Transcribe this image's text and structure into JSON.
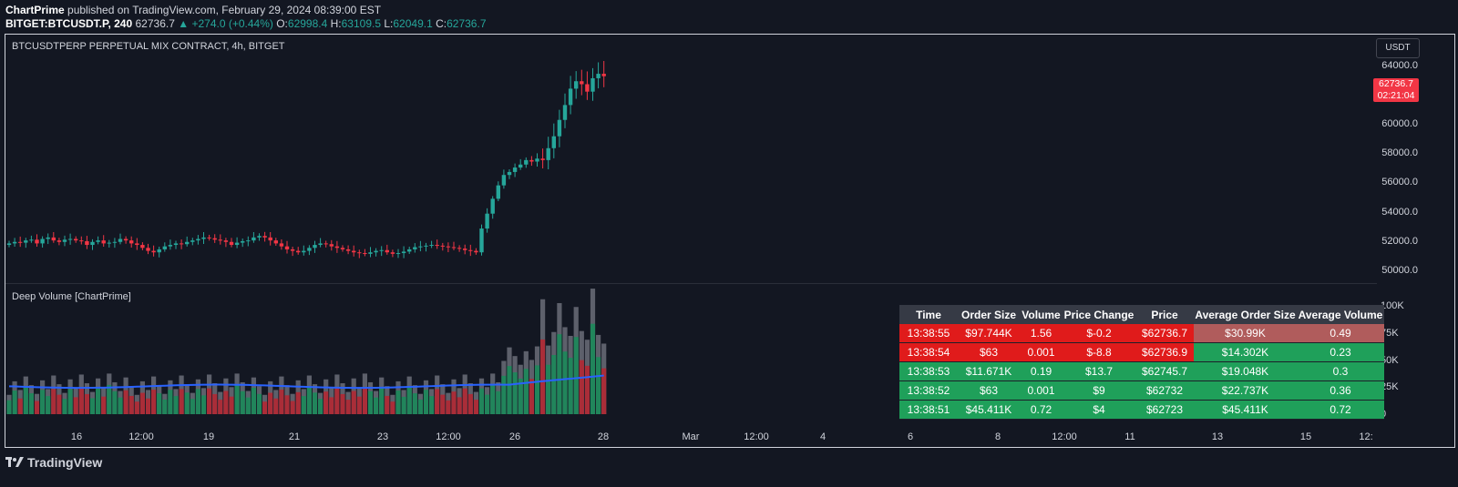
{
  "header": {
    "author": "ChartPrime",
    "published": "published on TradingView.com, February 29, 2024 08:39:00 EST",
    "symbol": "BITGET:BTCUSDT.P, 240",
    "last": "62736.7",
    "change": "+274.0 (+0.44%)",
    "o_label": "O:",
    "o_val": "62998.4",
    "h_label": "H:",
    "h_val": "63109.5",
    "l_label": "L:",
    "l_val": "62049.1",
    "c_label": "C:",
    "c_val": "62736.7"
  },
  "pane": {
    "title": "BTCUSDTPERP PERPETUAL MIX CONTRACT, 4h, BITGET",
    "currency": "USDT",
    "price_tag": "62736.7",
    "countdown": "02:21:04"
  },
  "price_scale": [
    "64000.0",
    "62000.0",
    "60000.0",
    "58000.0",
    "56000.0",
    "54000.0",
    "52000.0",
    "50000.0"
  ],
  "volume_pane": {
    "title": "Deep Volume [ChartPrime]",
    "scale": [
      "100K",
      "75K",
      "50K",
      "25K",
      "0"
    ]
  },
  "time_axis": [
    "16",
    "12:00",
    "19",
    "21",
    "23",
    "12:00",
    "26",
    "28",
    "Mar",
    "12:00",
    "4",
    "6",
    "8",
    "12:00",
    "11",
    "13",
    "15",
    "12:"
  ],
  "colors": {
    "up": "#26a69a",
    "down": "#f23645",
    "bg": "#131722",
    "ma": "#2962ff"
  },
  "order_table": {
    "headers": [
      "Time",
      "Order Size",
      "Volume",
      "Price Change",
      "Price",
      "Average Order Size",
      "Average Volume"
    ],
    "rows": [
      {
        "time": "13:38:55",
        "order_size": "$97.744K",
        "volume": "1.56",
        "price_change": "$-0.2",
        "price": "$62736.7",
        "avg_order": "$30.99K",
        "avg_volume": "0.49",
        "side": "sell"
      },
      {
        "time": "13:38:54",
        "order_size": "$63",
        "volume": "0.001",
        "price_change": "$-8.8",
        "price": "$62736.9",
        "avg_order": "$14.302K",
        "avg_volume": "0.23",
        "side": "sell"
      },
      {
        "time": "13:38:53",
        "order_size": "$11.671K",
        "volume": "0.19",
        "price_change": "$13.7",
        "price": "$62745.7",
        "avg_order": "$19.048K",
        "avg_volume": "0.3",
        "side": "buy"
      },
      {
        "time": "13:38:52",
        "order_size": "$63",
        "volume": "0.001",
        "price_change": "$9",
        "price": "$62732",
        "avg_order": "$22.737K",
        "avg_volume": "0.36",
        "side": "buy"
      },
      {
        "time": "13:38:51",
        "order_size": "$45.411K",
        "volume": "0.72",
        "price_change": "$4",
        "price": "$62723",
        "avg_order": "$45.411K",
        "avg_volume": "0.72",
        "side": "buy"
      }
    ]
  },
  "footer": {
    "brand": "TradingView"
  },
  "chart_data": {
    "type": "candlestick",
    "price_range": [
      49200,
      64800
    ],
    "candles_close": [
      51500,
      51600,
      51550,
      51700,
      51750,
      51500,
      51800,
      51900,
      51700,
      51600,
      51750,
      51800,
      51700,
      51650,
      51400,
      51600,
      51700,
      51500,
      51550,
      51600,
      51800,
      51700,
      51500,
      51400,
      51200,
      51000,
      50900,
      51100,
      51300,
      51400,
      51500,
      51450,
      51600,
      51700,
      51800,
      51900,
      51850,
      51750,
      51700,
      51600,
      51400,
      51550,
      51650,
      51700,
      51900,
      52000,
      51900,
      51700,
      51500,
      51300,
      51100,
      51000,
      50900,
      51000,
      51200,
      51400,
      51500,
      51450,
      51300,
      51200,
      51100,
      51000,
      50900,
      50850,
      50800,
      50900,
      51000,
      51050,
      50900,
      50800,
      50850,
      50950,
      51100,
      51250,
      51300,
      51350,
      51400,
      51350,
      51300,
      51250,
      51200,
      51150,
      51050,
      51000,
      50900,
      52500,
      53500,
      54500,
      55400,
      56100,
      56300,
      56600,
      56800,
      57100,
      57000,
      57200,
      57100,
      57900,
      58700,
      59800,
      60800,
      61900,
      62400,
      62200,
      61700,
      62600,
      62900,
      62736.7
    ],
    "volume_range": [
      0,
      100000
    ],
    "ma_note": "Volume moving average line"
  }
}
